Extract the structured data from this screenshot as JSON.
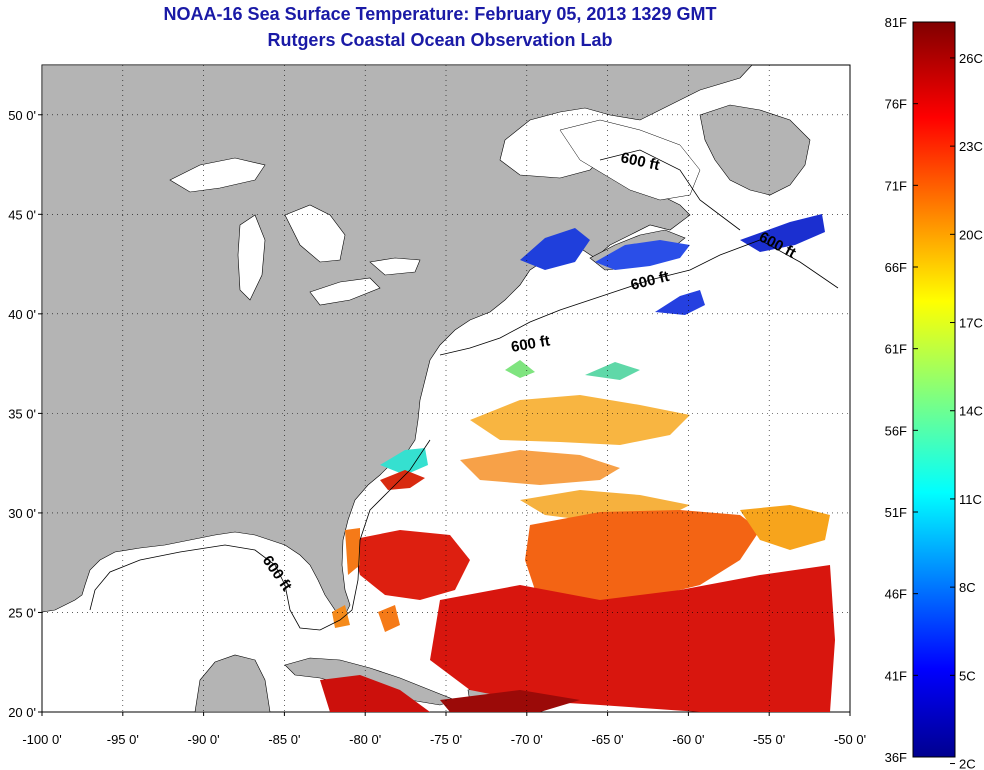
{
  "header": {
    "title": "NOAA-16 Sea Surface Temperature:  February 05, 2013 1329 GMT",
    "subtitle": "Rutgers Coastal Ocean Observation Lab"
  },
  "map": {
    "x_ticks": [
      "-100 0'",
      "-95 0'",
      "-90 0'",
      "-85 0'",
      "-80 0'",
      "-75 0'",
      "-70 0'",
      "-65 0'",
      "-60 0'",
      "-55 0'",
      "-50 0'"
    ],
    "y_ticks": [
      "20 0'",
      "25 0'",
      "30 0'",
      "35 0'",
      "40 0'",
      "45 0'",
      "50 0'"
    ],
    "lon_range": [
      -100,
      -50
    ],
    "lat_range": [
      20,
      52.5
    ],
    "grid": "dotted",
    "isobath_labels": [
      "600 ft",
      "600 ft",
      "600 ft",
      "600 ft",
      "600 ft"
    ],
    "land_color": "#b4b4b4",
    "ocean_color": "#ffffff"
  },
  "colorbar": {
    "f_labels": [
      "81F",
      "76F",
      "71F",
      "66F",
      "61F",
      "56F",
      "51F",
      "46F",
      "41F",
      "36F"
    ],
    "c_labels": [
      "26C",
      "23C",
      "20C",
      "17C",
      "14C",
      "11C",
      "8C",
      "5C",
      "2C"
    ],
    "colormap": "jet"
  }
}
